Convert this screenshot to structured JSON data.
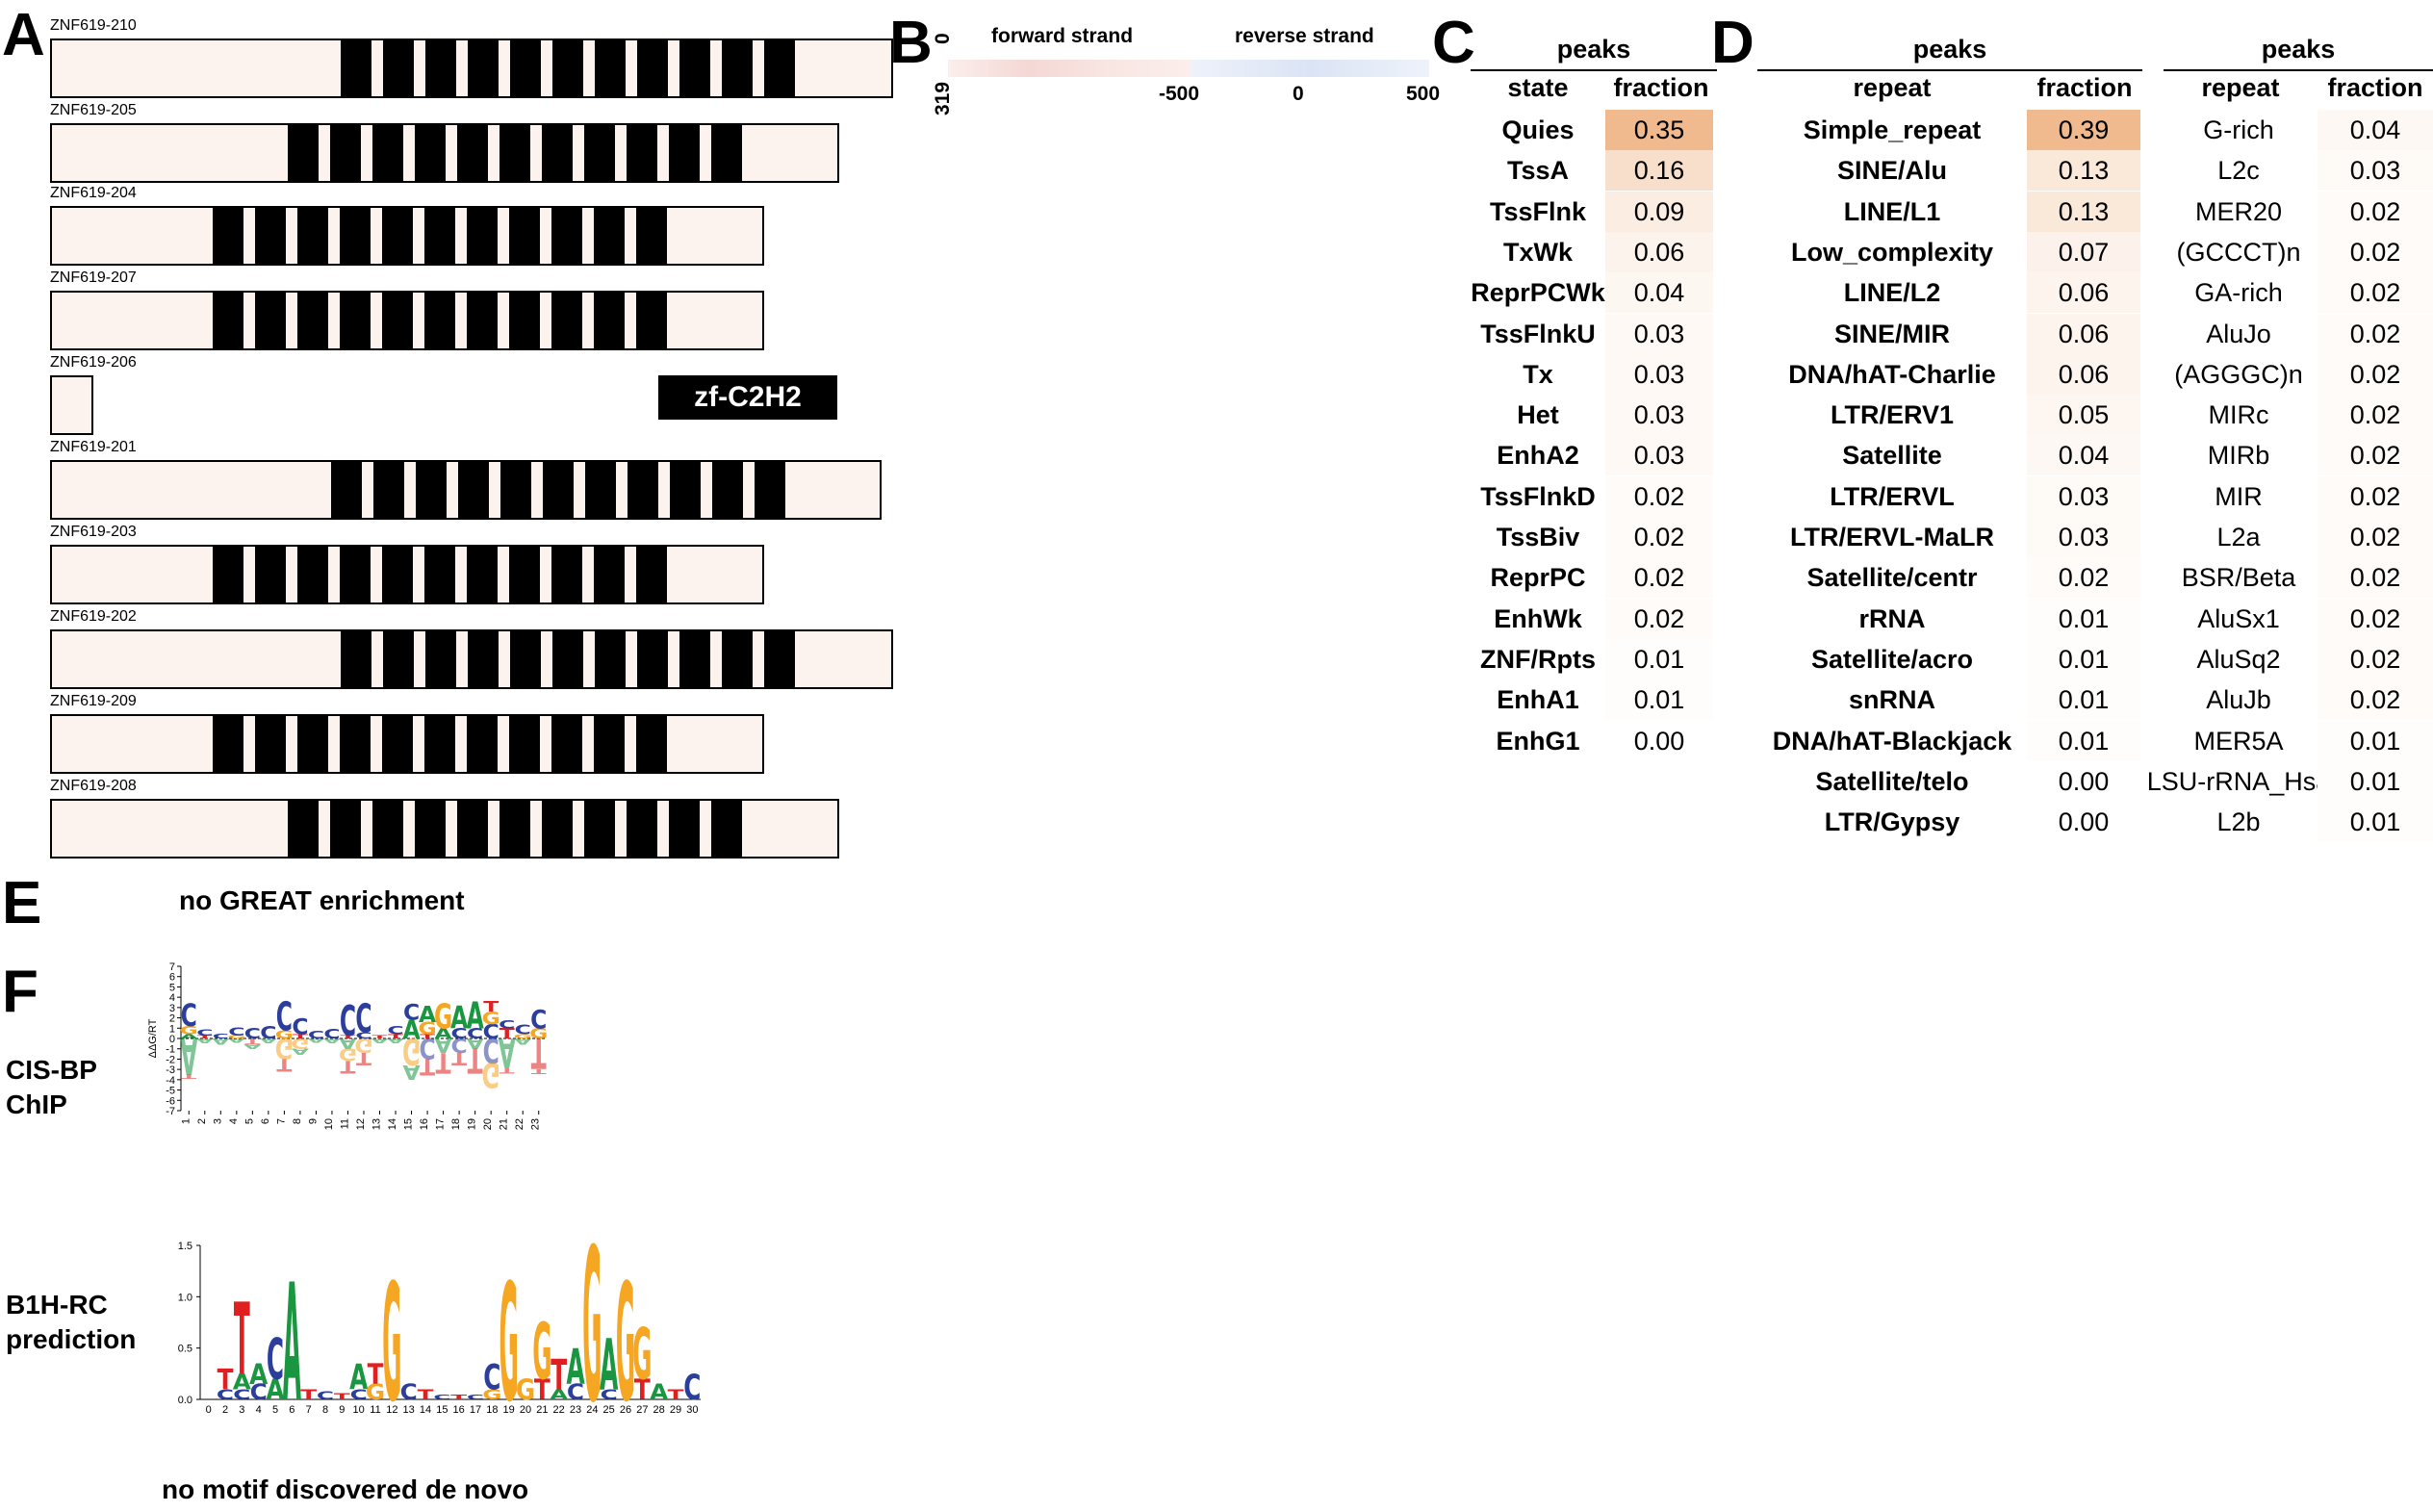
{
  "panels": {
    "a": "A",
    "b": "B",
    "c": "C",
    "d": "D",
    "e": "E",
    "f": "F"
  },
  "panel_a": {
    "transcripts": [
      {
        "name": "ZNF619-210",
        "zf_count": 11
      },
      {
        "name": "ZNF619-205",
        "zf_count": 11
      },
      {
        "name": "ZNF619-204",
        "zf_count": 11
      },
      {
        "name": "ZNF619-207",
        "zf_count": 11
      },
      {
        "name": "ZNF619-206",
        "zf_count": 0
      },
      {
        "name": "ZNF619-201",
        "zf_count": 11
      },
      {
        "name": "ZNF619-203",
        "zf_count": 11
      },
      {
        "name": "ZNF619-202",
        "zf_count": 11
      },
      {
        "name": "ZNF619-209",
        "zf_count": 11
      },
      {
        "name": "ZNF619-208",
        "zf_count": 11
      }
    ],
    "domain_legend": "zf-C2H2"
  },
  "panel_b": {
    "forward_label": "forward strand",
    "reverse_label": "reverse strand",
    "y_top": "0",
    "y_bottom": "319",
    "x_ticks": [
      "-500",
      "0",
      "500"
    ],
    "forward_color": "#c0392b",
    "reverse_color": "#2c5aa0"
  },
  "panel_c": {
    "title": "peaks",
    "col_state": "state",
    "col_fraction": "fraction",
    "rows": [
      {
        "state": "Quies",
        "fraction": "0.35"
      },
      {
        "state": "TssA",
        "fraction": "0.16"
      },
      {
        "state": "TssFlnk",
        "fraction": "0.09"
      },
      {
        "state": "TxWk",
        "fraction": "0.06"
      },
      {
        "state": "ReprPCWk",
        "fraction": "0.04"
      },
      {
        "state": "TssFlnkU",
        "fraction": "0.03"
      },
      {
        "state": "Tx",
        "fraction": "0.03"
      },
      {
        "state": "Het",
        "fraction": "0.03"
      },
      {
        "state": "EnhA2",
        "fraction": "0.03"
      },
      {
        "state": "TssFlnkD",
        "fraction": "0.02"
      },
      {
        "state": "TssBiv",
        "fraction": "0.02"
      },
      {
        "state": "ReprPC",
        "fraction": "0.02"
      },
      {
        "state": "EnhWk",
        "fraction": "0.02"
      },
      {
        "state": "ZNF/Rpts",
        "fraction": "0.01"
      },
      {
        "state": "EnhA1",
        "fraction": "0.01"
      },
      {
        "state": "EnhG1",
        "fraction": "0.00"
      }
    ]
  },
  "panel_d1": {
    "title": "peaks",
    "col_repeat": "repeat",
    "col_fraction": "fraction",
    "rows": [
      {
        "repeat": "Simple_repeat",
        "fraction": "0.39"
      },
      {
        "repeat": "SINE/Alu",
        "fraction": "0.13"
      },
      {
        "repeat": "LINE/L1",
        "fraction": "0.13"
      },
      {
        "repeat": "Low_complexity",
        "fraction": "0.07"
      },
      {
        "repeat": "LINE/L2",
        "fraction": "0.06"
      },
      {
        "repeat": "SINE/MIR",
        "fraction": "0.06"
      },
      {
        "repeat": "DNA/hAT-Charlie",
        "fraction": "0.06"
      },
      {
        "repeat": "LTR/ERV1",
        "fraction": "0.05"
      },
      {
        "repeat": "Satellite",
        "fraction": "0.04"
      },
      {
        "repeat": "LTR/ERVL",
        "fraction": "0.03"
      },
      {
        "repeat": "LTR/ERVL-MaLR",
        "fraction": "0.03"
      },
      {
        "repeat": "Satellite/centr",
        "fraction": "0.02"
      },
      {
        "repeat": "rRNA",
        "fraction": "0.01"
      },
      {
        "repeat": "Satellite/acro",
        "fraction": "0.01"
      },
      {
        "repeat": "snRNA",
        "fraction": "0.01"
      },
      {
        "repeat": "DNA/hAT-Blackjack",
        "fraction": "0.01"
      },
      {
        "repeat": "Satellite/telo",
        "fraction": "0.00"
      },
      {
        "repeat": "LTR/Gypsy",
        "fraction": "0.00"
      }
    ]
  },
  "panel_d2": {
    "title": "peaks",
    "col_repeat": "repeat",
    "col_fraction": "fraction",
    "rows": [
      {
        "repeat": "G-rich",
        "fraction": "0.04"
      },
      {
        "repeat": "L2c",
        "fraction": "0.03"
      },
      {
        "repeat": "MER20",
        "fraction": "0.02"
      },
      {
        "repeat": "(GCCCT)n",
        "fraction": "0.02"
      },
      {
        "repeat": "GA-rich",
        "fraction": "0.02"
      },
      {
        "repeat": "AluJo",
        "fraction": "0.02"
      },
      {
        "repeat": "(AGGGC)n",
        "fraction": "0.02"
      },
      {
        "repeat": "MIRc",
        "fraction": "0.02"
      },
      {
        "repeat": "MIRb",
        "fraction": "0.02"
      },
      {
        "repeat": "MIR",
        "fraction": "0.02"
      },
      {
        "repeat": "L2a",
        "fraction": "0.02"
      },
      {
        "repeat": "BSR/Beta",
        "fraction": "0.02"
      },
      {
        "repeat": "AluSx1",
        "fraction": "0.02"
      },
      {
        "repeat": "AluSq2",
        "fraction": "0.02"
      },
      {
        "repeat": "AluJb",
        "fraction": "0.02"
      },
      {
        "repeat": "MER5A",
        "fraction": "0.01"
      },
      {
        "repeat": "LSU-rRNA_Hsa",
        "fraction": "0.01"
      },
      {
        "repeat": "L2b",
        "fraction": "0.01"
      }
    ]
  },
  "panel_e": {
    "text": "no GREAT enrichment"
  },
  "panel_f": {
    "cisbp_label_1": "CIS-BP",
    "cisbp_label_2": "ChIP",
    "b1h_label_1": "B1H-RC",
    "b1h_label_2": "prediction",
    "cisbp_ylabel": "ΔΔG/RT",
    "cisbp_yticks": [
      "7",
      "6",
      "5",
      "4",
      "3",
      "2",
      "1",
      "0",
      "-1",
      "-2",
      "-3",
      "-4",
      "-5",
      "-6",
      "-7"
    ],
    "cisbp_xticks": [
      "1",
      "2",
      "3",
      "4",
      "5",
      "6",
      "7",
      "8",
      "9",
      "10",
      "11",
      "12",
      "13",
      "14",
      "15",
      "16",
      "17",
      "18",
      "19",
      "20",
      "21",
      "22",
      "23"
    ],
    "b1h_yticks": [
      "1.5",
      "1.0",
      "0.5",
      "0.0"
    ],
    "b1h_xticks": [
      "0",
      "2",
      "3",
      "4",
      "5",
      "6",
      "7",
      "8",
      "9",
      "10",
      "11",
      "12",
      "13",
      "14",
      "15",
      "16",
      "17",
      "18",
      "19",
      "20",
      "21",
      "22",
      "23",
      "24",
      "25",
      "26",
      "27",
      "28",
      "29",
      "30"
    ],
    "no_motif_text": "no motif discovered de novo",
    "colors": {
      "A": "#1a9641",
      "C": "#2c3e9c",
      "G": "#f5a623",
      "T": "#e02020"
    }
  }
}
